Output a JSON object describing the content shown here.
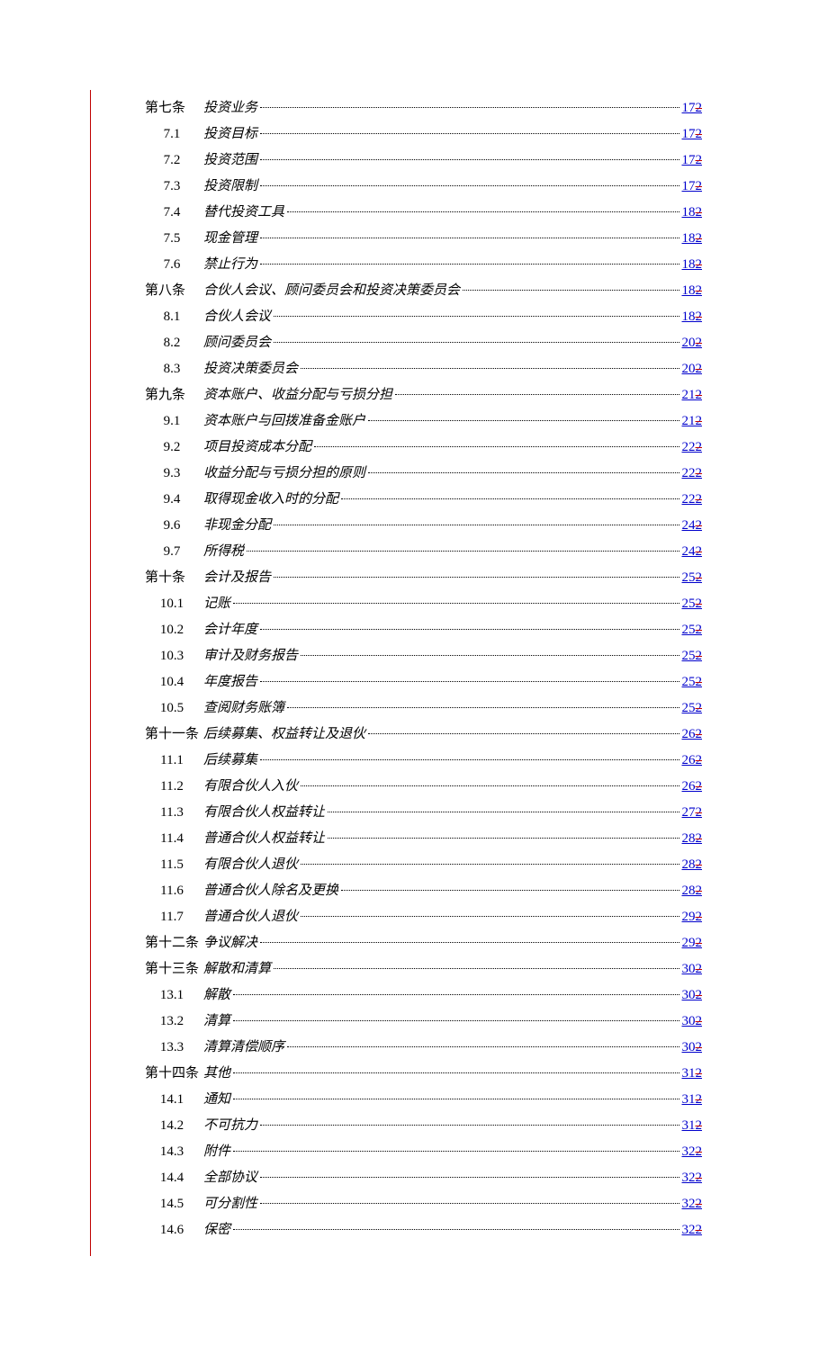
{
  "toc": [
    {
      "num": "第七条",
      "title": "投资业务",
      "page": "17",
      "strike": "2",
      "level": 0
    },
    {
      "num": "7.1",
      "title": "投资目标",
      "page": "17",
      "strike": "2",
      "level": 1
    },
    {
      "num": "7.2",
      "title": "投资范围",
      "page": "17",
      "strike": "2",
      "level": 1
    },
    {
      "num": "7.3",
      "title": "投资限制",
      "page": "17",
      "strike": "2",
      "level": 1
    },
    {
      "num": "7.4",
      "title": "替代投资工具",
      "page": "18",
      "strike": "2",
      "level": 1
    },
    {
      "num": "7.5",
      "title": "现金管理",
      "page": "18",
      "strike": "2",
      "level": 1
    },
    {
      "num": "7.6",
      "title": "禁止行为",
      "page": "18",
      "strike": "2",
      "level": 1
    },
    {
      "num": "第八条",
      "title": "合伙人会议、顾问委员会和投资决策委员会",
      "page": "18",
      "strike": "2",
      "level": 0
    },
    {
      "num": "8.1",
      "title": "合伙人会议",
      "page": "18",
      "strike": "2",
      "level": 1
    },
    {
      "num": "8.2",
      "title": "顾问委员会",
      "page": "20",
      "strike": "2",
      "level": 1
    },
    {
      "num": "8.3",
      "title": "投资决策委员会",
      "page": "20",
      "strike": "2",
      "level": 1
    },
    {
      "num": "第九条",
      "title": "资本账户、收益分配与亏损分担",
      "page": "21",
      "strike": "2",
      "level": 0
    },
    {
      "num": "9.1",
      "title": "资本账户与回拨准备金账户",
      "page": "21",
      "strike": "2",
      "level": 1
    },
    {
      "num": "9.2",
      "title": "项目投资成本分配",
      "page": "22",
      "strike": "2",
      "level": 1
    },
    {
      "num": "9.3",
      "title": "收益分配与亏损分担的原则",
      "page": "22",
      "strike": "2",
      "level": 1
    },
    {
      "num": "9.4",
      "title": "取得现金收入时的分配",
      "page": "22",
      "strike": "2",
      "level": 1
    },
    {
      "num": "9.6",
      "title": "非现金分配",
      "page": "24",
      "strike": "2",
      "level": 1
    },
    {
      "num": "9.7",
      "title": "所得税",
      "page": "24",
      "strike": "2",
      "level": 1
    },
    {
      "num": "第十条",
      "title": "会计及报告",
      "page": "25",
      "strike": "2",
      "level": 0
    },
    {
      "num": "10.1",
      "title": "记账",
      "page": "25",
      "strike": "2",
      "level": 1
    },
    {
      "num": "10.2",
      "title": "会计年度",
      "page": "25",
      "strike": "2",
      "level": 1
    },
    {
      "num": "10.3",
      "title": "审计及财务报告",
      "page": "25",
      "strike": "2",
      "level": 1
    },
    {
      "num": "10.4",
      "title": "年度报告",
      "page": "25",
      "strike": "2",
      "level": 1
    },
    {
      "num": "10.5",
      "title": "查阅财务账簿",
      "page": "25",
      "strike": "2",
      "level": 1
    },
    {
      "num": "第十一条",
      "title": "后续募集、权益转让及退伙",
      "page": "26",
      "strike": "2",
      "level": 0
    },
    {
      "num": "11.1",
      "title": "后续募集",
      "page": "26",
      "strike": "2",
      "level": 1
    },
    {
      "num": "11.2",
      "title": "有限合伙人入伙",
      "page": "26",
      "strike": "2",
      "level": 1
    },
    {
      "num": "11.3",
      "title": "有限合伙人权益转让",
      "page": "27",
      "strike": "2",
      "level": 1
    },
    {
      "num": "11.4",
      "title": "普通合伙人权益转让",
      "page": "28",
      "strike": "2",
      "level": 1
    },
    {
      "num": "11.5",
      "title": "有限合伙人退伙",
      "page": "28",
      "strike": "2",
      "level": 1
    },
    {
      "num": "11.6",
      "title": "普通合伙人除名及更换",
      "page": "28",
      "strike": "2",
      "level": 1
    },
    {
      "num": "11.7",
      "title": "普通合伙人退伙",
      "page": "29",
      "strike": "2",
      "level": 1
    },
    {
      "num": "第十二条",
      "title": "争议解决",
      "page": "29",
      "strike": "2",
      "level": 0
    },
    {
      "num": "第十三条",
      "title": "解散和清算",
      "page": "30",
      "strike": "2",
      "level": 0
    },
    {
      "num": "13.1",
      "title": "解散",
      "page": "30",
      "strike": "2",
      "level": 1
    },
    {
      "num": "13.2",
      "title": "清算",
      "page": "30",
      "strike": "2",
      "level": 1
    },
    {
      "num": "13.3",
      "title": "清算清偿顺序",
      "page": "30",
      "strike": "2",
      "level": 1
    },
    {
      "num": "第十四条",
      "title": "其他",
      "page": "31",
      "strike": "2",
      "level": 0
    },
    {
      "num": "14.1",
      "title": "通知",
      "page": "31",
      "strike": "2",
      "level": 1
    },
    {
      "num": "14.2",
      "title": "不可抗力",
      "page": "31",
      "strike": "2",
      "level": 1
    },
    {
      "num": "14.3",
      "title": "附件",
      "page": "32",
      "strike": "2",
      "level": 1
    },
    {
      "num": "14.4",
      "title": "全部协议",
      "page": "32",
      "strike": "2",
      "level": 1
    },
    {
      "num": "14.5",
      "title": "可分割性",
      "page": "32",
      "strike": "2",
      "level": 1
    },
    {
      "num": "14.6",
      "title": "保密",
      "page": "32",
      "strike": "2",
      "level": 1
    }
  ]
}
